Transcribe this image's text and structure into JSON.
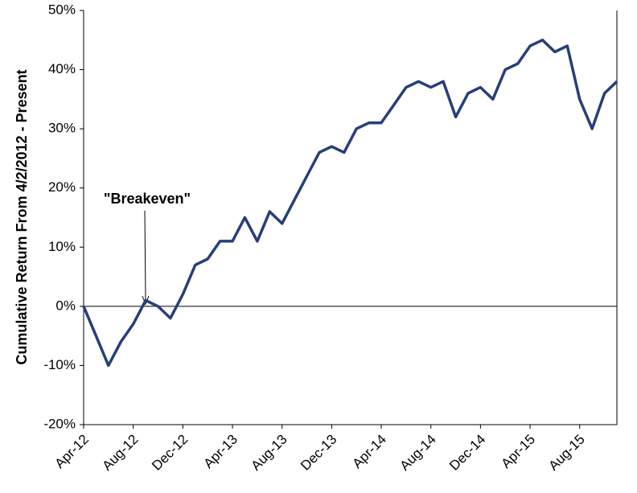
{
  "chart_data": {
    "type": "line",
    "ylabel": "Cumulative Return From 4/2/2012 - Present",
    "annotation": "\"Breakeven\"",
    "x": [
      "Apr-12",
      "May-12",
      "Jun-12",
      "Jul-12",
      "Aug-12",
      "Sep-12",
      "Oct-12",
      "Nov-12",
      "Dec-12",
      "Jan-13",
      "Feb-13",
      "Mar-13",
      "Apr-13",
      "May-13",
      "Jun-13",
      "Jul-13",
      "Aug-13",
      "Sep-13",
      "Oct-13",
      "Nov-13",
      "Dec-13",
      "Jan-14",
      "Feb-14",
      "Mar-14",
      "Apr-14",
      "May-14",
      "Jun-14",
      "Jul-14",
      "Aug-14",
      "Sep-14",
      "Oct-14",
      "Nov-14",
      "Dec-14",
      "Jan-15",
      "Feb-15",
      "Mar-15",
      "Apr-15",
      "May-15",
      "Jun-15",
      "Jul-15",
      "Aug-15",
      "Sep-15",
      "Oct-15",
      "Nov-15"
    ],
    "series": [
      {
        "color": "#263f7a",
        "values": [
          0,
          -5,
          -10,
          -6,
          -3,
          1,
          0,
          -2,
          2,
          7,
          8,
          11,
          11,
          15,
          11,
          16,
          14,
          18,
          22,
          26,
          27,
          26,
          30,
          31,
          31,
          34,
          37,
          38,
          37,
          38,
          32,
          36,
          37,
          35,
          40,
          41,
          44,
          45,
          43,
          44,
          35,
          30,
          36,
          38
        ]
      }
    ],
    "xticks": [
      "Apr-12",
      "Aug-12",
      "Dec-12",
      "Apr-13",
      "Aug-13",
      "Dec-13",
      "Apr-14",
      "Aug-14",
      "Dec-14",
      "Apr-15",
      "Aug-15"
    ],
    "ylim": [
      -20,
      50
    ],
    "yticks": [
      {
        "value": -20,
        "label": "-20%"
      },
      {
        "value": -10,
        "label": "-10%"
      },
      {
        "value": 0,
        "label": "0%"
      },
      {
        "value": 10,
        "label": "10%"
      },
      {
        "value": 20,
        "label": "20%"
      },
      {
        "value": 30,
        "label": "30%"
      },
      {
        "value": 40,
        "label": "40%"
      },
      {
        "value": 50,
        "label": "50%"
      }
    ],
    "grid": false
  }
}
